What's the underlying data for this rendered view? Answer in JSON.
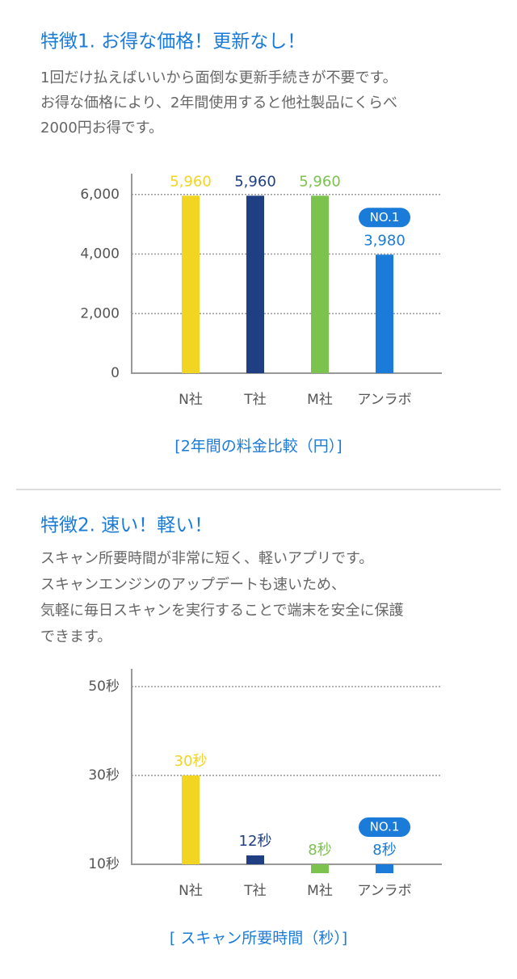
{
  "sections": [
    {
      "title": "特徴1. お得な価格！更新なし！",
      "lines": [
        "1回だけ払えばいいから面倒な更新手続きが不要です。",
        "お得な価格により、2年間使用すると他社製品にくらべ",
        "2000円お得です。"
      ]
    },
    {
      "title": "特徴2. 速い！軽い！",
      "lines": [
        "スキャン所要時間が非常に短く、軽いアプリです。",
        "スキャンエンジンのアップデートも速いため、",
        "気軽に毎日スキャンを実行することで端末を安全に保護",
        "できます。"
      ]
    }
  ],
  "chart_data": [
    {
      "type": "bar",
      "title": "[2年間の料金比較（円）]",
      "categories": [
        "N社",
        "T社",
        "M社",
        "アンラボ"
      ],
      "values": [
        5960,
        5960,
        5960,
        3980
      ],
      "value_labels": [
        "5,960",
        "5,960",
        "5,960",
        "3,980"
      ],
      "colors": [
        "#f2d423",
        "#1f3f82",
        "#7cc24f",
        "#1a7bd9"
      ],
      "ylim": [
        0,
        6700
      ],
      "yticks": [
        0,
        {
          "value": 2000,
          "label": "2,000"
        },
        {
          "value": 4000,
          "label": "4,000"
        },
        {
          "value": 6000,
          "label": "6,000"
        }
      ],
      "grid": true,
      "annotation": {
        "text": "NO.1",
        "category": "アンラボ"
      }
    },
    {
      "type": "bar",
      "title": "[ スキャン所要時間（秒）]",
      "categories": [
        "N社",
        "T社",
        "M社",
        "アンラボ"
      ],
      "values": [
        30,
        12,
        8,
        8
      ],
      "value_labels": [
        "30秒",
        "12秒",
        "8秒",
        "8秒"
      ],
      "colors": [
        "#f2d423",
        "#1f3f82",
        "#7cc24f",
        "#1a7bd9"
      ],
      "ylim": [
        10,
        54
      ],
      "yticks": [
        {
          "value": 10,
          "label": "10秒"
        },
        {
          "value": 30,
          "label": "30秒"
        },
        {
          "value": 50,
          "label": "50秒"
        }
      ],
      "grid": true,
      "annotation": {
        "text": "NO.1",
        "category": "アンラボ"
      }
    }
  ]
}
